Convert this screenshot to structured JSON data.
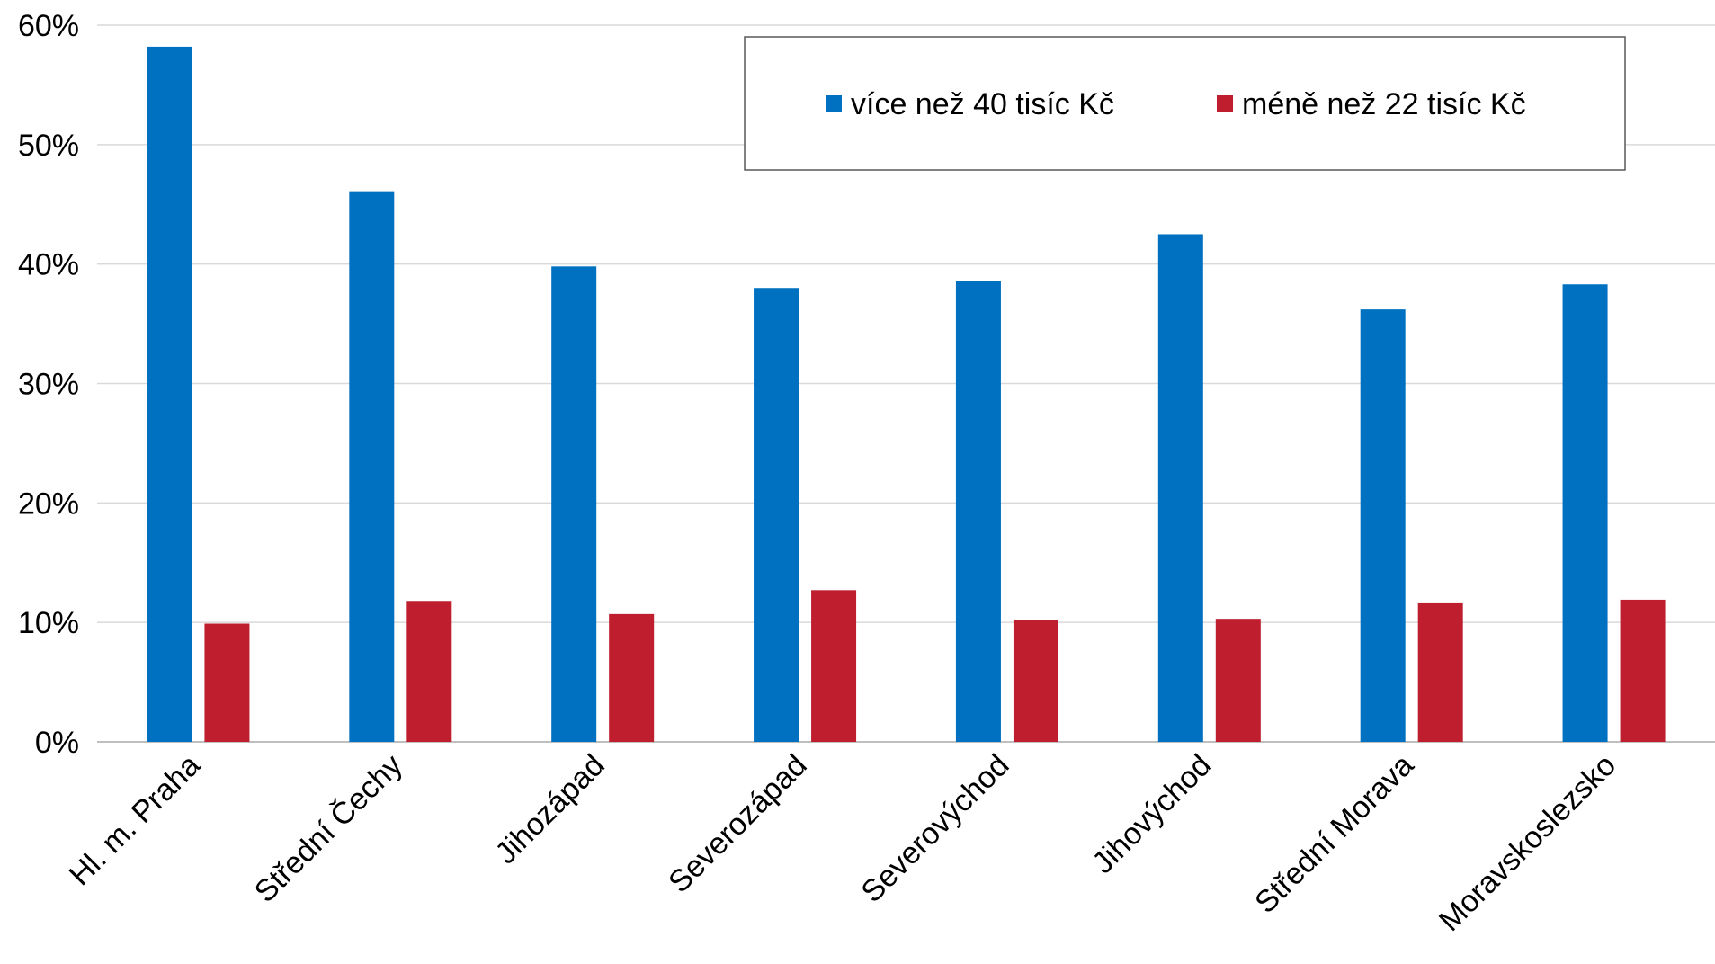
{
  "chart_data": {
    "type": "bar",
    "categories": [
      "Hl. m. Praha",
      "Střední Čechy",
      "Jihozápad",
      "Severozápad",
      "Severovýchod",
      "Jihovýchod",
      "Střední Morava",
      "Moravskoslezsko"
    ],
    "series": [
      {
        "name": "více než 40 tisíc Kč",
        "color": "#0070C0",
        "values": [
          58.2,
          46.1,
          39.8,
          38.0,
          38.6,
          42.5,
          36.2,
          38.3
        ]
      },
      {
        "name": "méně než 22 tisíc Kč",
        "color": "#BE1E2D",
        "values": [
          9.9,
          11.8,
          10.7,
          12.7,
          10.2,
          10.3,
          11.6,
          11.9
        ]
      }
    ],
    "ylim": [
      0,
      60
    ],
    "yticks": [
      0,
      10,
      20,
      30,
      40,
      50,
      60
    ],
    "ytick_labels": [
      "0%",
      "10%",
      "20%",
      "30%",
      "40%",
      "50%",
      "60%"
    ],
    "grid": true,
    "legend_position": "top-right",
    "title": "",
    "xlabel": "",
    "ylabel": ""
  }
}
